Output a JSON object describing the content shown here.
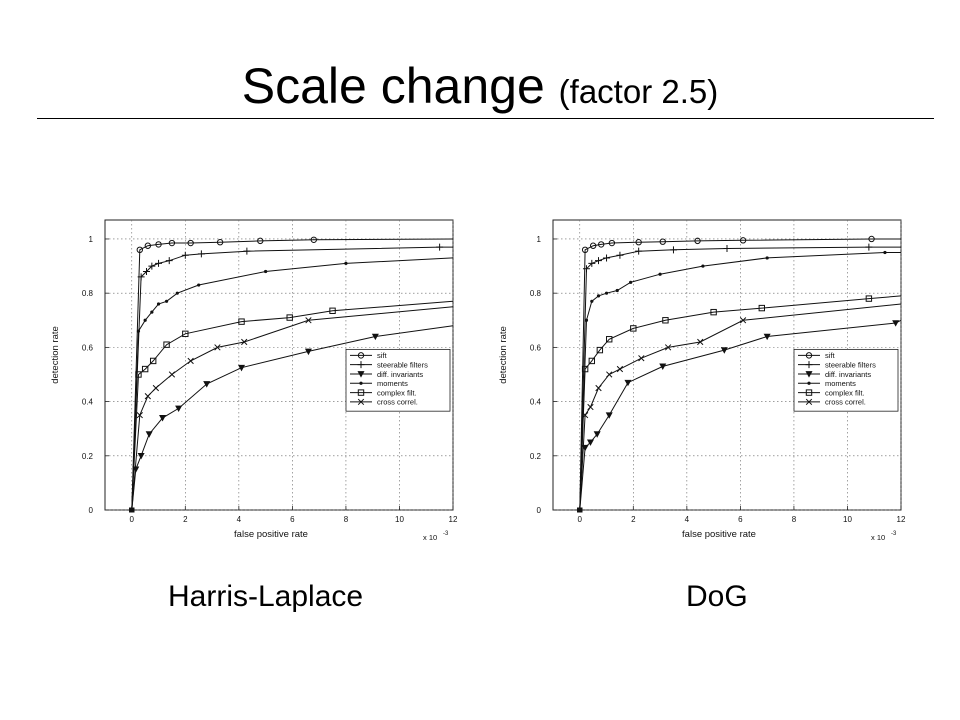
{
  "slide": {
    "title_main": "Scale change",
    "title_sub": "(factor 2.5)",
    "captions": [
      "Harris-Laplace",
      "DoG"
    ]
  },
  "chart_data": [
    {
      "type": "line",
      "caption": "Harris-Laplace",
      "xlabel": "false positive rate",
      "ylabel": "detection rate",
      "x_multiplier_label": "x 10",
      "x_multiplier_exp": "-3",
      "xlim": [
        -1,
        12
      ],
      "ylim": [
        0,
        1.07
      ],
      "xticks": [
        0,
        2,
        4,
        6,
        8,
        10,
        12
      ],
      "yticks": [
        0,
        0.2,
        0.4,
        0.6,
        0.8,
        1
      ],
      "grid": true,
      "legend_position": "lower-right",
      "series": [
        {
          "name": "sift",
          "marker": "circle",
          "x": [
            0,
            0.3,
            0.6,
            1,
            1.5,
            2.2,
            3.3,
            4.8,
            6.8,
            12
          ],
          "y": [
            0,
            0.96,
            0.975,
            0.98,
            0.985,
            0.985,
            0.988,
            0.993,
            0.997,
            1.0
          ]
        },
        {
          "name": "steerable filters",
          "marker": "plus",
          "x": [
            0,
            0.35,
            0.55,
            0.75,
            1,
            1.4,
            2,
            2.6,
            4.3,
            11.5,
            12
          ],
          "y": [
            0,
            0.86,
            0.88,
            0.9,
            0.91,
            0.92,
            0.94,
            0.945,
            0.955,
            0.97,
            0.97
          ]
        },
        {
          "name": "diff. invariants",
          "marker": "triangle-down",
          "x": [
            0,
            0.15,
            0.35,
            0.65,
            1.15,
            1.75,
            2.8,
            4.1,
            6.6,
            9.1,
            12
          ],
          "y": [
            0,
            0.15,
            0.2,
            0.28,
            0.34,
            0.375,
            0.465,
            0.525,
            0.585,
            0.64,
            0.68
          ]
        },
        {
          "name": "moments",
          "marker": "dot",
          "x": [
            0,
            0.25,
            0.5,
            0.75,
            1,
            1.3,
            1.7,
            2.5,
            5,
            8,
            12
          ],
          "y": [
            0,
            0.66,
            0.7,
            0.73,
            0.76,
            0.77,
            0.8,
            0.83,
            0.88,
            0.91,
            0.93
          ]
        },
        {
          "name": "complex filt.",
          "marker": "square",
          "x": [
            0,
            0.25,
            0.5,
            0.8,
            1.3,
            2,
            4.1,
            5.9,
            7.5,
            12
          ],
          "y": [
            0,
            0.5,
            0.52,
            0.55,
            0.61,
            0.65,
            0.695,
            0.71,
            0.735,
            0.77
          ]
        },
        {
          "name": "cross correl.",
          "marker": "x",
          "x": [
            0,
            0.3,
            0.6,
            0.9,
            1.5,
            2.2,
            3.2,
            4.2,
            6.6,
            12
          ],
          "y": [
            0,
            0.35,
            0.42,
            0.45,
            0.5,
            0.55,
            0.6,
            0.62,
            0.7,
            0.75
          ]
        }
      ]
    },
    {
      "type": "line",
      "caption": "DoG",
      "xlabel": "false positive rate",
      "ylabel": "detection rate",
      "x_multiplier_label": "x 10",
      "x_multiplier_exp": "-3",
      "xlim": [
        -1,
        12
      ],
      "ylim": [
        0,
        1.07
      ],
      "xticks": [
        0,
        2,
        4,
        6,
        8,
        10,
        12
      ],
      "yticks": [
        0,
        0.2,
        0.4,
        0.6,
        0.8,
        1
      ],
      "grid": true,
      "legend_position": "lower-right",
      "series": [
        {
          "name": "sift",
          "marker": "circle",
          "x": [
            0,
            0.2,
            0.5,
            0.8,
            1.2,
            2.2,
            3.1,
            4.4,
            6.1,
            10.9,
            12
          ],
          "y": [
            0,
            0.96,
            0.975,
            0.98,
            0.985,
            0.988,
            0.99,
            0.993,
            0.995,
            1.0,
            1.0
          ]
        },
        {
          "name": "steerable filters",
          "marker": "plus",
          "x": [
            0,
            0.25,
            0.45,
            0.7,
            1,
            1.5,
            2.2,
            3.5,
            5.5,
            10.8,
            12
          ],
          "y": [
            0,
            0.89,
            0.91,
            0.92,
            0.93,
            0.94,
            0.955,
            0.96,
            0.965,
            0.97,
            0.97
          ]
        },
        {
          "name": "diff. invariants",
          "marker": "triangle-down",
          "x": [
            0,
            0.2,
            0.4,
            0.65,
            1.1,
            1.8,
            3.1,
            5.4,
            7,
            11.8,
            12
          ],
          "y": [
            0,
            0.23,
            0.25,
            0.28,
            0.35,
            0.47,
            0.53,
            0.59,
            0.64,
            0.69,
            0.7
          ]
        },
        {
          "name": "moments",
          "marker": "dot",
          "x": [
            0,
            0.25,
            0.45,
            0.7,
            1,
            1.4,
            1.9,
            3,
            4.6,
            7,
            11.4,
            12
          ],
          "y": [
            0,
            0.7,
            0.77,
            0.79,
            0.8,
            0.81,
            0.84,
            0.87,
            0.9,
            0.93,
            0.95,
            0.95
          ]
        },
        {
          "name": "complex filt.",
          "marker": "square",
          "x": [
            0,
            0.2,
            0.45,
            0.75,
            1.1,
            2,
            3.2,
            5,
            6.8,
            10.8,
            12
          ],
          "y": [
            0,
            0.52,
            0.55,
            0.59,
            0.63,
            0.67,
            0.7,
            0.73,
            0.745,
            0.78,
            0.79
          ]
        },
        {
          "name": "cross correl.",
          "marker": "x",
          "x": [
            0,
            0.2,
            0.4,
            0.7,
            1.1,
            1.5,
            2.3,
            3.3,
            4.5,
            6.1,
            12
          ],
          "y": [
            0,
            0.35,
            0.38,
            0.45,
            0.5,
            0.52,
            0.56,
            0.6,
            0.62,
            0.7,
            0.76
          ]
        }
      ]
    }
  ]
}
